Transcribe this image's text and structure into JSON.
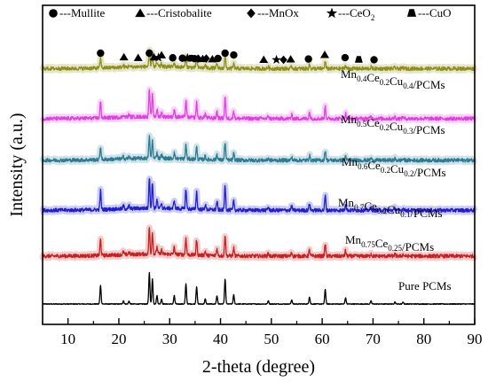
{
  "chart_data": {
    "type": "line",
    "title": "",
    "xlabel": "2-theta (degree)",
    "ylabel": "Intensity (a.u.)",
    "xlim": [
      5,
      90
    ],
    "xticks": [
      10,
      20,
      30,
      40,
      50,
      60,
      70,
      80,
      90
    ],
    "y_ticks_shown": false,
    "grid": false,
    "legend": {
      "placement": "top",
      "entries": [
        {
          "symbol": "circle",
          "label": "---Mullite"
        },
        {
          "symbol": "triangle",
          "label": "---Cristobalite"
        },
        {
          "symbol": "diamond",
          "label": "---MnOx"
        },
        {
          "symbol": "star",
          "label": "---CeO",
          "subscript": "2"
        },
        {
          "symbol": "trapezoid",
          "label": "---CuO"
        }
      ]
    },
    "peaks": [
      {
        "x": 16.4,
        "h": 0.45
      },
      {
        "x": 20.9,
        "h": 0.08
      },
      {
        "x": 22.0,
        "h": 0.07
      },
      {
        "x": 26.0,
        "h": 0.75
      },
      {
        "x": 26.6,
        "h": 0.6
      },
      {
        "x": 27.5,
        "h": 0.2
      },
      {
        "x": 28.4,
        "h": 0.12
      },
      {
        "x": 30.9,
        "h": 0.2
      },
      {
        "x": 33.2,
        "h": 0.48
      },
      {
        "x": 35.3,
        "h": 0.42
      },
      {
        "x": 37.0,
        "h": 0.12
      },
      {
        "x": 39.3,
        "h": 0.2
      },
      {
        "x": 40.9,
        "h": 0.6
      },
      {
        "x": 42.6,
        "h": 0.22
      },
      {
        "x": 49.4,
        "h": 0.08
      },
      {
        "x": 54.0,
        "h": 0.1
      },
      {
        "x": 57.5,
        "h": 0.17
      },
      {
        "x": 60.6,
        "h": 0.35
      },
      {
        "x": 64.6,
        "h": 0.15
      },
      {
        "x": 69.6,
        "h": 0.07
      },
      {
        "x": 74.3,
        "h": 0.05
      },
      {
        "x": 75.9,
        "h": 0.05
      }
    ],
    "series": [
      {
        "label_parts": [
          [
            "Pure PCMs",
            ""
          ]
        ],
        "color": "#000000",
        "scale": 1.0,
        "offset": 0.0
      },
      {
        "label_parts": [
          [
            "Mn",
            "0.75"
          ],
          [
            "Ce",
            "0.25"
          ],
          [
            "/PCMs",
            ""
          ]
        ],
        "color": "#c8201f",
        "scale": 0.85,
        "offset": 1.15
      },
      {
        "label_parts": [
          [
            "Mn",
            "0.7"
          ],
          [
            "Ce",
            "0.2"
          ],
          [
            "Cu",
            "0.1"
          ],
          [
            "/PCMs",
            ""
          ]
        ],
        "color": "#1f1fd0",
        "scale": 1.0,
        "offset": 2.25
      },
      {
        "label_parts": [
          [
            "Mn",
            "0.6"
          ],
          [
            "Ce",
            "0.2"
          ],
          [
            "Cu",
            "0.2"
          ],
          [
            "/PCMs",
            ""
          ]
        ],
        "color": "#2a7b93",
        "scale": 0.7,
        "offset": 3.45
      },
      {
        "label_parts": [
          [
            "Mn",
            "0.5"
          ],
          [
            "Ce",
            "0.2"
          ],
          [
            "Cu",
            "0.3"
          ],
          [
            "/PCMs",
            ""
          ]
        ],
        "color": "#e040e0",
        "scale": 0.85,
        "offset": 4.45
      },
      {
        "label_parts": [
          [
            "Mn",
            "0.4"
          ],
          [
            "Ce",
            "0.2"
          ],
          [
            "Cu",
            "0.4"
          ],
          [
            "/PCMs",
            ""
          ]
        ],
        "color": "#8f8f1a",
        "scale": 0.5,
        "offset": 5.65
      }
    ],
    "markers": [
      {
        "x": 16.4,
        "symbol": "circle"
      },
      {
        "x": 21.0,
        "symbol": "triangle"
      },
      {
        "x": 23.8,
        "symbol": "triangle"
      },
      {
        "x": 26.0,
        "symbol": "circle"
      },
      {
        "x": 26.9,
        "symbol": "triangle"
      },
      {
        "x": 27.8,
        "symbol": "star"
      },
      {
        "x": 28.4,
        "symbol": "triangle"
      },
      {
        "x": 30.6,
        "symbol": "circle"
      },
      {
        "x": 32.5,
        "symbol": "circle"
      },
      {
        "x": 33.5,
        "symbol": "star"
      },
      {
        "x": 34.2,
        "symbol": "trapezoid"
      },
      {
        "x": 34.9,
        "symbol": "circle"
      },
      {
        "x": 35.6,
        "symbol": "diamond"
      },
      {
        "x": 36.5,
        "symbol": "triangle"
      },
      {
        "x": 37.2,
        "symbol": "diamond"
      },
      {
        "x": 38.4,
        "symbol": "triangle"
      },
      {
        "x": 39.5,
        "symbol": "circle"
      },
      {
        "x": 40.9,
        "symbol": "circle"
      },
      {
        "x": 42.6,
        "symbol": "circle"
      },
      {
        "x": 48.5,
        "symbol": "triangle"
      },
      {
        "x": 51.0,
        "symbol": "star"
      },
      {
        "x": 52.4,
        "symbol": "diamond"
      },
      {
        "x": 53.8,
        "symbol": "triangle"
      },
      {
        "x": 57.3,
        "symbol": "circle"
      },
      {
        "x": 60.5,
        "symbol": "triangle"
      },
      {
        "x": 64.5,
        "symbol": "circle"
      },
      {
        "x": 67.2,
        "symbol": "trapezoid"
      },
      {
        "x": 70.2,
        "symbol": "circle"
      }
    ]
  }
}
